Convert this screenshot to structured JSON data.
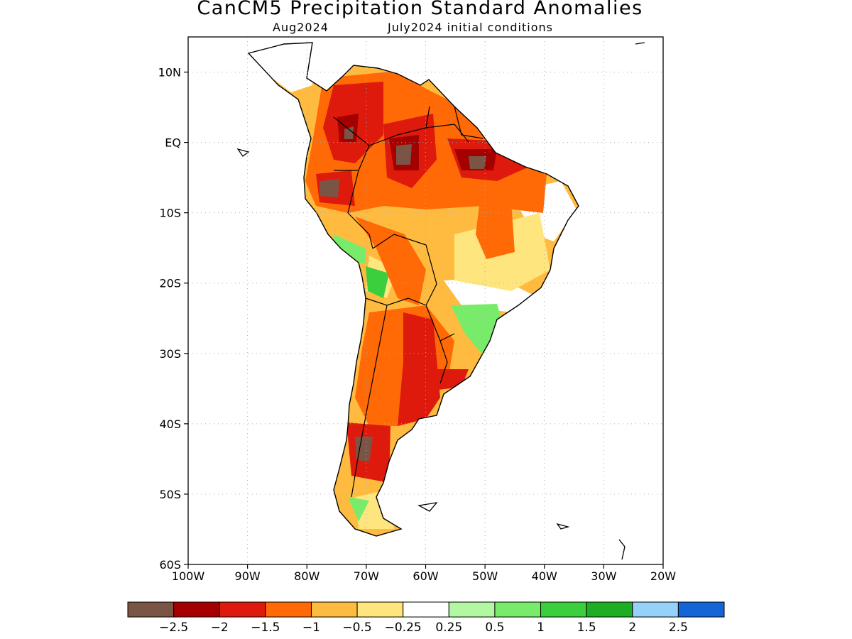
{
  "title": "CanCM5 Precipitation Standard Anomalies",
  "subtitle_left": "Aug2024",
  "subtitle_right": "July2024 initial conditions",
  "map": {
    "lon_range": [
      -100,
      -20
    ],
    "lat_range": [
      -60,
      15
    ],
    "y_ticks": [
      "10N",
      "EQ",
      "10S",
      "20S",
      "30S",
      "40S",
      "50S",
      "60S"
    ],
    "x_ticks": [
      "100W",
      "90W",
      "80W",
      "70W",
      "60W",
      "50W",
      "40W",
      "30W",
      "20W"
    ],
    "grid": true
  },
  "colorbar": {
    "colors": [
      "#7a5546",
      "#a50000",
      "#de1a0c",
      "#ff6a06",
      "#ffbb3f",
      "#ffe57d",
      "#ffffff",
      "#b2f8a2",
      "#78ec6a",
      "#3bce3d",
      "#1fae23",
      "#96d1fa",
      "#1465d6"
    ],
    "labels": [
      "−2.5",
      "−2",
      "−1.5",
      "−1",
      "−0.5",
      "−0.25",
      "0.25",
      "0.5",
      "1",
      "1.5",
      "2",
      "2.5"
    ]
  }
}
